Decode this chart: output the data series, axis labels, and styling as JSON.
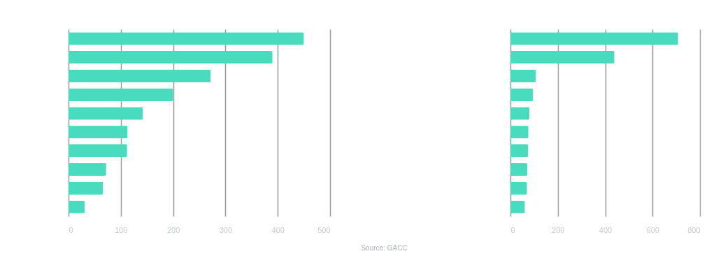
{
  "chart_data": [
    {
      "type": "bar",
      "orientation": "horizontal",
      "categories": [
        null,
        null,
        null,
        null,
        null,
        null,
        null,
        null,
        null,
        null
      ],
      "values": [
        450,
        390,
        272,
        200,
        142,
        113,
        112,
        72,
        66,
        31
      ],
      "color": "#48dbbd",
      "xlim": [
        0,
        500
      ],
      "xticks": [
        0,
        100,
        200,
        300,
        400,
        500
      ],
      "grid": "x",
      "annotations": [
        "Source: GACC"
      ]
    },
    {
      "type": "bar",
      "orientation": "horizontal",
      "categories": [
        null,
        null,
        null,
        null,
        null,
        null,
        null,
        null,
        null,
        null
      ],
      "values": [
        708,
        439,
        108,
        96,
        80,
        76,
        75,
        71,
        70,
        61
      ],
      "color": "#48dbbd",
      "xlim": [
        0,
        800
      ],
      "xticks": [
        0,
        200,
        400,
        600,
        800
      ],
      "grid": "x"
    }
  ]
}
